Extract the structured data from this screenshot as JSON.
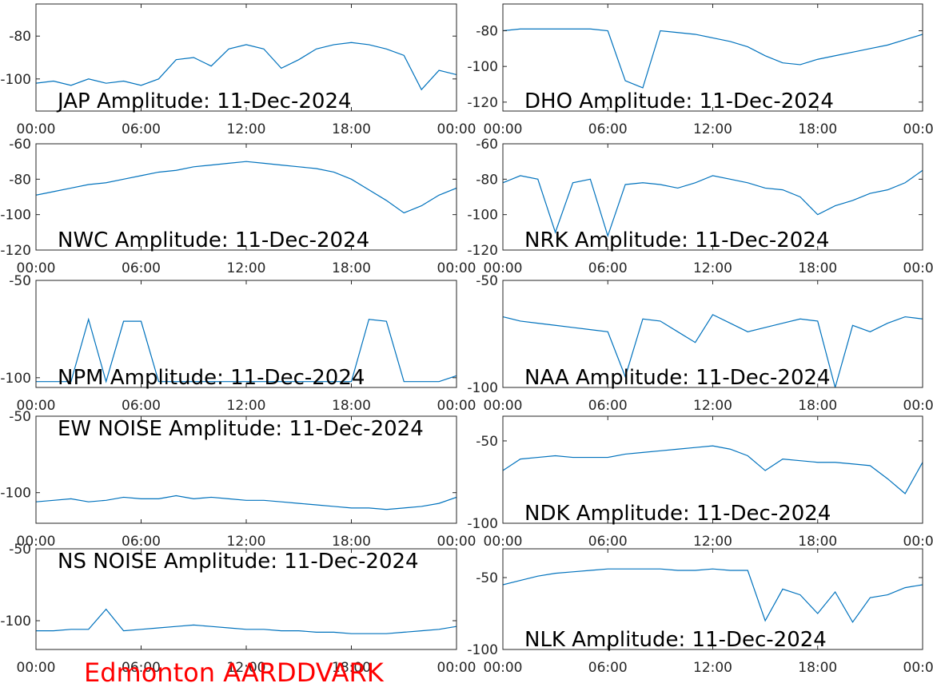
{
  "annotation": "Edmonton AARDDVARK",
  "annotation_color": "#ff0000",
  "chart_data": [
    {
      "type": "line",
      "title": "JAP Amplitude: 11-Dec-2024",
      "title_position": "bottom-left",
      "color": "#0072bd",
      "x": [
        0,
        1,
        2,
        3,
        4,
        5,
        6,
        7,
        8,
        9,
        10,
        11,
        12,
        13,
        14,
        15,
        16,
        17,
        18,
        19,
        20,
        21,
        22,
        23,
        24
      ],
      "values": [
        -102,
        -101,
        -103,
        -100,
        -102,
        -101,
        -103,
        -100,
        -91,
        -90,
        -94,
        -86,
        -84,
        -86,
        -95,
        -91,
        -86,
        -84,
        -83,
        -84,
        -86,
        -89,
        -105,
        -96,
        -98
      ],
      "xlim": [
        0,
        24
      ],
      "xticks": [
        {
          "value": 0,
          "label": "00:00"
        },
        {
          "value": 6,
          "label": "06:00"
        },
        {
          "value": 12,
          "label": "12:00"
        },
        {
          "value": 18,
          "label": "18:00"
        },
        {
          "value": 24,
          "label": "00:00"
        }
      ],
      "ylim": [
        -115,
        -65
      ],
      "yticks": [
        -100,
        -80
      ]
    },
    {
      "type": "line",
      "title": "DHO Amplitude: 11-Dec-2024",
      "title_position": "bottom-left",
      "color": "#0072bd",
      "x": [
        0,
        1,
        2,
        3,
        4,
        5,
        6,
        7,
        8,
        9,
        10,
        11,
        12,
        13,
        14,
        15,
        16,
        17,
        18,
        19,
        20,
        21,
        22,
        23,
        24
      ],
      "values": [
        -80,
        -79,
        -79,
        -79,
        -79,
        -79,
        -80,
        -108,
        -112,
        -80,
        -81,
        -82,
        -84,
        -86,
        -89,
        -94,
        -98,
        -99,
        -96,
        -94,
        -92,
        -90,
        -88,
        -85,
        -82
      ],
      "xlim": [
        0,
        24
      ],
      "xticks": [
        {
          "value": 0,
          "label": "00:00"
        },
        {
          "value": 6,
          "label": "06:00"
        },
        {
          "value": 12,
          "label": "12:00"
        },
        {
          "value": 18,
          "label": "18:00"
        },
        {
          "value": 24,
          "label": "00:00"
        }
      ],
      "ylim": [
        -125,
        -65
      ],
      "yticks": [
        -120,
        -100,
        -80
      ]
    },
    {
      "type": "line",
      "title": "NWC Amplitude: 11-Dec-2024",
      "title_position": "bottom-left",
      "color": "#0072bd",
      "x": [
        0,
        1,
        2,
        3,
        4,
        5,
        6,
        7,
        8,
        9,
        10,
        11,
        12,
        13,
        14,
        15,
        16,
        17,
        18,
        19,
        20,
        21,
        22,
        23,
        24
      ],
      "values": [
        -89,
        -87,
        -85,
        -83,
        -82,
        -80,
        -78,
        -76,
        -75,
        -73,
        -72,
        -71,
        -70,
        -71,
        -72,
        -73,
        -74,
        -76,
        -80,
        -86,
        -92,
        -99,
        -95,
        -89,
        -85
      ],
      "xlim": [
        0,
        24
      ],
      "xticks": [
        {
          "value": 0,
          "label": "00:00"
        },
        {
          "value": 6,
          "label": "06:00"
        },
        {
          "value": 12,
          "label": "12:00"
        },
        {
          "value": 18,
          "label": "18:00"
        },
        {
          "value": 24,
          "label": "00:00"
        }
      ],
      "ylim": [
        -120,
        -60
      ],
      "yticks": [
        -120,
        -100,
        -80,
        -60
      ]
    },
    {
      "type": "line",
      "title": "NRK Amplitude: 11-Dec-2024",
      "title_position": "bottom-left",
      "color": "#0072bd",
      "x": [
        0,
        1,
        2,
        3,
        4,
        5,
        6,
        7,
        8,
        9,
        10,
        11,
        12,
        13,
        14,
        15,
        16,
        17,
        18,
        19,
        20,
        21,
        22,
        23,
        24
      ],
      "values": [
        -82,
        -78,
        -80,
        -110,
        -82,
        -80,
        -112,
        -83,
        -82,
        -83,
        -85,
        -82,
        -78,
        -80,
        -82,
        -85,
        -86,
        -90,
        -100,
        -95,
        -92,
        -88,
        -86,
        -82,
        -75
      ],
      "xlim": [
        0,
        24
      ],
      "xticks": [
        {
          "value": 0,
          "label": "00:00"
        },
        {
          "value": 6,
          "label": "06:00"
        },
        {
          "value": 12,
          "label": "12:00"
        },
        {
          "value": 18,
          "label": "18:00"
        },
        {
          "value": 24,
          "label": "00:00"
        }
      ],
      "ylim": [
        -120,
        -60
      ],
      "yticks": [
        -120,
        -100,
        -80,
        -60
      ]
    },
    {
      "type": "line",
      "title": "NPM Amplitude: 11-Dec-2024",
      "title_position": "bottom-left",
      "color": "#0072bd",
      "x": [
        0,
        1,
        2,
        3,
        4,
        5,
        6,
        7,
        8,
        9,
        10,
        11,
        12,
        13,
        14,
        15,
        16,
        17,
        18,
        19,
        20,
        21,
        22,
        23,
        24
      ],
      "values": [
        -102,
        -102,
        -102,
        -70,
        -102,
        -71,
        -71,
        -102,
        -102,
        -102,
        -102,
        -102,
        -102,
        -102,
        -102,
        -102,
        -102,
        -102,
        -102,
        -70,
        -71,
        -102,
        -102,
        -102,
        -99
      ],
      "xlim": [
        0,
        24
      ],
      "xticks": [
        {
          "value": 0,
          "label": "00:00"
        },
        {
          "value": 6,
          "label": "06:00"
        },
        {
          "value": 12,
          "label": "12:00"
        },
        {
          "value": 18,
          "label": "18:00"
        },
        {
          "value": 24,
          "label": "00:00"
        }
      ],
      "ylim": [
        -105,
        -50
      ],
      "yticks": [
        -100,
        -50
      ]
    },
    {
      "type": "line",
      "title": "NAA Amplitude: 11-Dec-2024",
      "title_position": "bottom-left",
      "color": "#0072bd",
      "x": [
        0,
        1,
        2,
        3,
        4,
        5,
        6,
        7,
        8,
        9,
        10,
        11,
        12,
        13,
        14,
        15,
        16,
        17,
        18,
        19,
        20,
        21,
        22,
        23,
        24
      ],
      "values": [
        -67,
        -69,
        -70,
        -71,
        -72,
        -73,
        -74,
        -95,
        -68,
        -69,
        -74,
        -79,
        -66,
        -70,
        -74,
        -72,
        -70,
        -68,
        -69,
        -100,
        -71,
        -74,
        -70,
        -67,
        -68
      ],
      "xlim": [
        0,
        24
      ],
      "xticks": [
        {
          "value": 0,
          "label": "00:00"
        },
        {
          "value": 6,
          "label": "06:00"
        },
        {
          "value": 12,
          "label": "12:00"
        },
        {
          "value": 18,
          "label": "18:00"
        },
        {
          "value": 24,
          "label": "00:00"
        }
      ],
      "ylim": [
        -100,
        -50
      ],
      "yticks": [
        -100,
        -50
      ]
    },
    {
      "type": "line",
      "title": "EW NOISE Amplitude: 11-Dec-2024",
      "title_position": "top-left",
      "color": "#0072bd",
      "x": [
        0,
        1,
        2,
        3,
        4,
        5,
        6,
        7,
        8,
        9,
        10,
        11,
        12,
        13,
        14,
        15,
        16,
        17,
        18,
        19,
        20,
        21,
        22,
        23,
        24
      ],
      "values": [
        -106,
        -105,
        -104,
        -106,
        -105,
        -103,
        -104,
        -104,
        -102,
        -104,
        -103,
        -104,
        -105,
        -105,
        -106,
        -107,
        -108,
        -109,
        -110,
        -110,
        -111,
        -110,
        -109,
        -107,
        -103
      ],
      "xlim": [
        0,
        24
      ],
      "xticks": [
        {
          "value": 0,
          "label": "00:00"
        },
        {
          "value": 6,
          "label": "06:00"
        },
        {
          "value": 12,
          "label": "12:00"
        },
        {
          "value": 18,
          "label": "18:00"
        },
        {
          "value": 24,
          "label": "00:00"
        }
      ],
      "ylim": [
        -120,
        -50
      ],
      "yticks": [
        -100,
        -50
      ]
    },
    {
      "type": "line",
      "title": "NDK Amplitude: 11-Dec-2024",
      "title_position": "bottom-left",
      "color": "#0072bd",
      "x": [
        0,
        1,
        2,
        3,
        4,
        5,
        6,
        7,
        8,
        9,
        10,
        11,
        12,
        13,
        14,
        15,
        16,
        17,
        18,
        19,
        20,
        21,
        22,
        23,
        24
      ],
      "values": [
        -68,
        -61,
        -60,
        -59,
        -60,
        -60,
        -60,
        -58,
        -57,
        -56,
        -55,
        -54,
        -53,
        -55,
        -59,
        -68,
        -61,
        -62,
        -63,
        -63,
        -64,
        -65,
        -73,
        -82,
        -63
      ],
      "xlim": [
        0,
        24
      ],
      "xticks": [
        {
          "value": 0,
          "label": "00:00"
        },
        {
          "value": 6,
          "label": "06:00"
        },
        {
          "value": 12,
          "label": "12:00"
        },
        {
          "value": 18,
          "label": "18:00"
        },
        {
          "value": 24,
          "label": "00:00"
        }
      ],
      "ylim": [
        -100,
        -35
      ],
      "yticks": [
        -100,
        -50
      ]
    },
    {
      "type": "line",
      "title": "NS NOISE Amplitude: 11-Dec-2024",
      "title_position": "top-left",
      "color": "#0072bd",
      "x": [
        0,
        1,
        2,
        3,
        4,
        5,
        6,
        7,
        8,
        9,
        10,
        11,
        12,
        13,
        14,
        15,
        16,
        17,
        18,
        19,
        20,
        21,
        22,
        23,
        24
      ],
      "values": [
        -107,
        -107,
        -106,
        -106,
        -92,
        -107,
        -106,
        -105,
        -104,
        -103,
        -104,
        -105,
        -106,
        -106,
        -107,
        -107,
        -108,
        -108,
        -109,
        -109,
        -109,
        -108,
        -107,
        -106,
        -104
      ],
      "xlim": [
        0,
        24
      ],
      "xticks": [
        {
          "value": 0,
          "label": "00:00"
        },
        {
          "value": 6,
          "label": "06:00"
        },
        {
          "value": 12,
          "label": "12:00"
        },
        {
          "value": 18,
          "label": "18:00"
        },
        {
          "value": 24,
          "label": "00:00"
        }
      ],
      "ylim": [
        -120,
        -50
      ],
      "yticks": [
        -100,
        -50
      ]
    },
    {
      "type": "line",
      "title": "NLK Amplitude: 11-Dec-2024",
      "title_position": "bottom-left",
      "color": "#0072bd",
      "x": [
        0,
        1,
        2,
        3,
        4,
        5,
        6,
        7,
        8,
        9,
        10,
        11,
        12,
        13,
        14,
        15,
        16,
        17,
        18,
        19,
        20,
        21,
        22,
        23,
        24
      ],
      "values": [
        -55,
        -52,
        -49,
        -47,
        -46,
        -45,
        -44,
        -44,
        -44,
        -44,
        -45,
        -45,
        -44,
        -45,
        -45,
        -80,
        -58,
        -62,
        -75,
        -60,
        -81,
        -64,
        -62,
        -57,
        -55
      ],
      "xlim": [
        0,
        24
      ],
      "xticks": [
        {
          "value": 0,
          "label": "00:00"
        },
        {
          "value": 6,
          "label": "06:00"
        },
        {
          "value": 12,
          "label": "12:00"
        },
        {
          "value": 18,
          "label": "18:00"
        },
        {
          "value": 24,
          "label": "00:00"
        }
      ],
      "ylim": [
        -100,
        -30
      ],
      "yticks": [
        -100,
        -50
      ]
    }
  ]
}
